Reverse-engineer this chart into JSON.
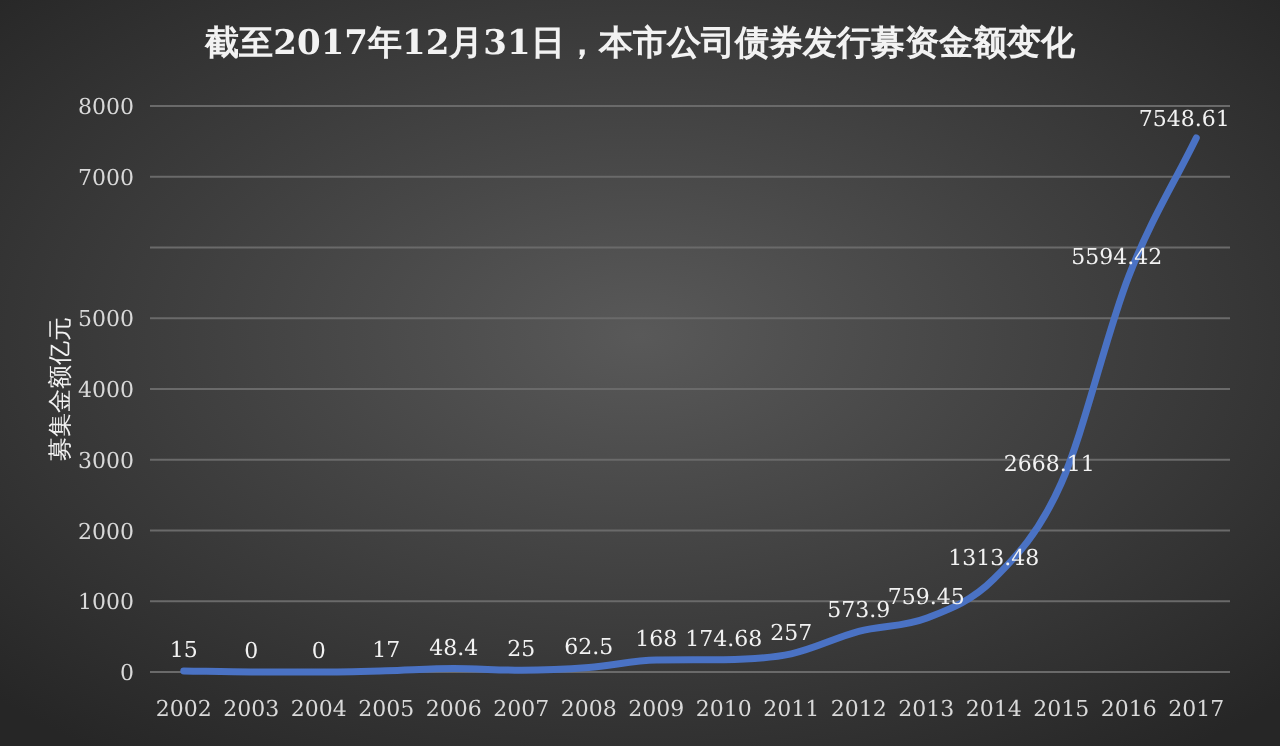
{
  "chart_data": {
    "type": "line",
    "title": "截至2017年12月31日，本市公司债券发行募资金额变化",
    "ylabel": "募集金额亿元",
    "categories": [
      "2002",
      "2003",
      "2004",
      "2005",
      "2006",
      "2007",
      "2008",
      "2009",
      "2010",
      "2011",
      "2012",
      "2013",
      "2014",
      "2015",
      "2016",
      "2017"
    ],
    "series": [
      {
        "color": "#4a72c4",
        "values": [
          15,
          0,
          0,
          17,
          48.4,
          25,
          62.5,
          168,
          174.68,
          257,
          573.9,
          759.45,
          1313.48,
          2668.11,
          5594.42,
          7548.61
        ]
      }
    ],
    "ylim": [
      0,
      8000
    ],
    "yticks": [
      0,
      1000,
      2000,
      3000,
      4000,
      5000,
      {
        "value": 6000,
        "label": null
      },
      7000,
      8000
    ],
    "grid": "y",
    "data_labels": true,
    "marker": "none",
    "line_style": "solid"
  }
}
